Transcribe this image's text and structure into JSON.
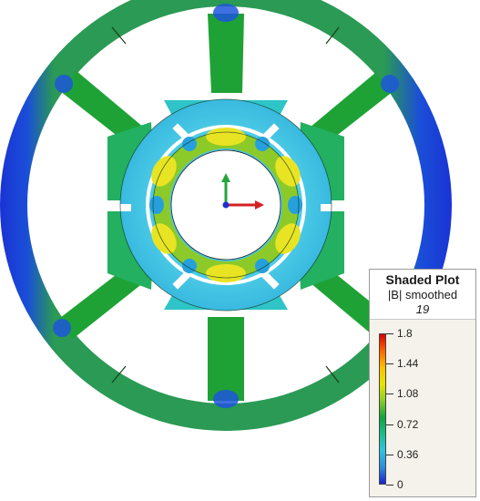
{
  "viewer": {
    "name": "finite-element-field-view",
    "colors": {
      "stator_outer_ring": "#1c9d2f",
      "rim_low_field": "#1a33d4",
      "rotor_ring": "#3dc6dc",
      "airgap_ring": "#27b7a4",
      "tooth": "#1aa43a",
      "high_field": "#e2e329"
    }
  },
  "legend": {
    "title": "Shaded Plot",
    "quantity": "|B| smoothed",
    "frame": "19",
    "ticks": [
      "1.8",
      "1.44",
      "1.08",
      "0.72",
      "0.36",
      "0"
    ],
    "tick_values": [
      1.8,
      1.44,
      1.08,
      0.72,
      0.36,
      0
    ],
    "gradient_colors": [
      "#d70000",
      "#ff6600",
      "#ffbf00",
      "#e6e600",
      "#8bcc2a",
      "#10a43d",
      "#1dbc8a",
      "#32c2e0",
      "#2f8ed8",
      "#1c22d0"
    ]
  }
}
